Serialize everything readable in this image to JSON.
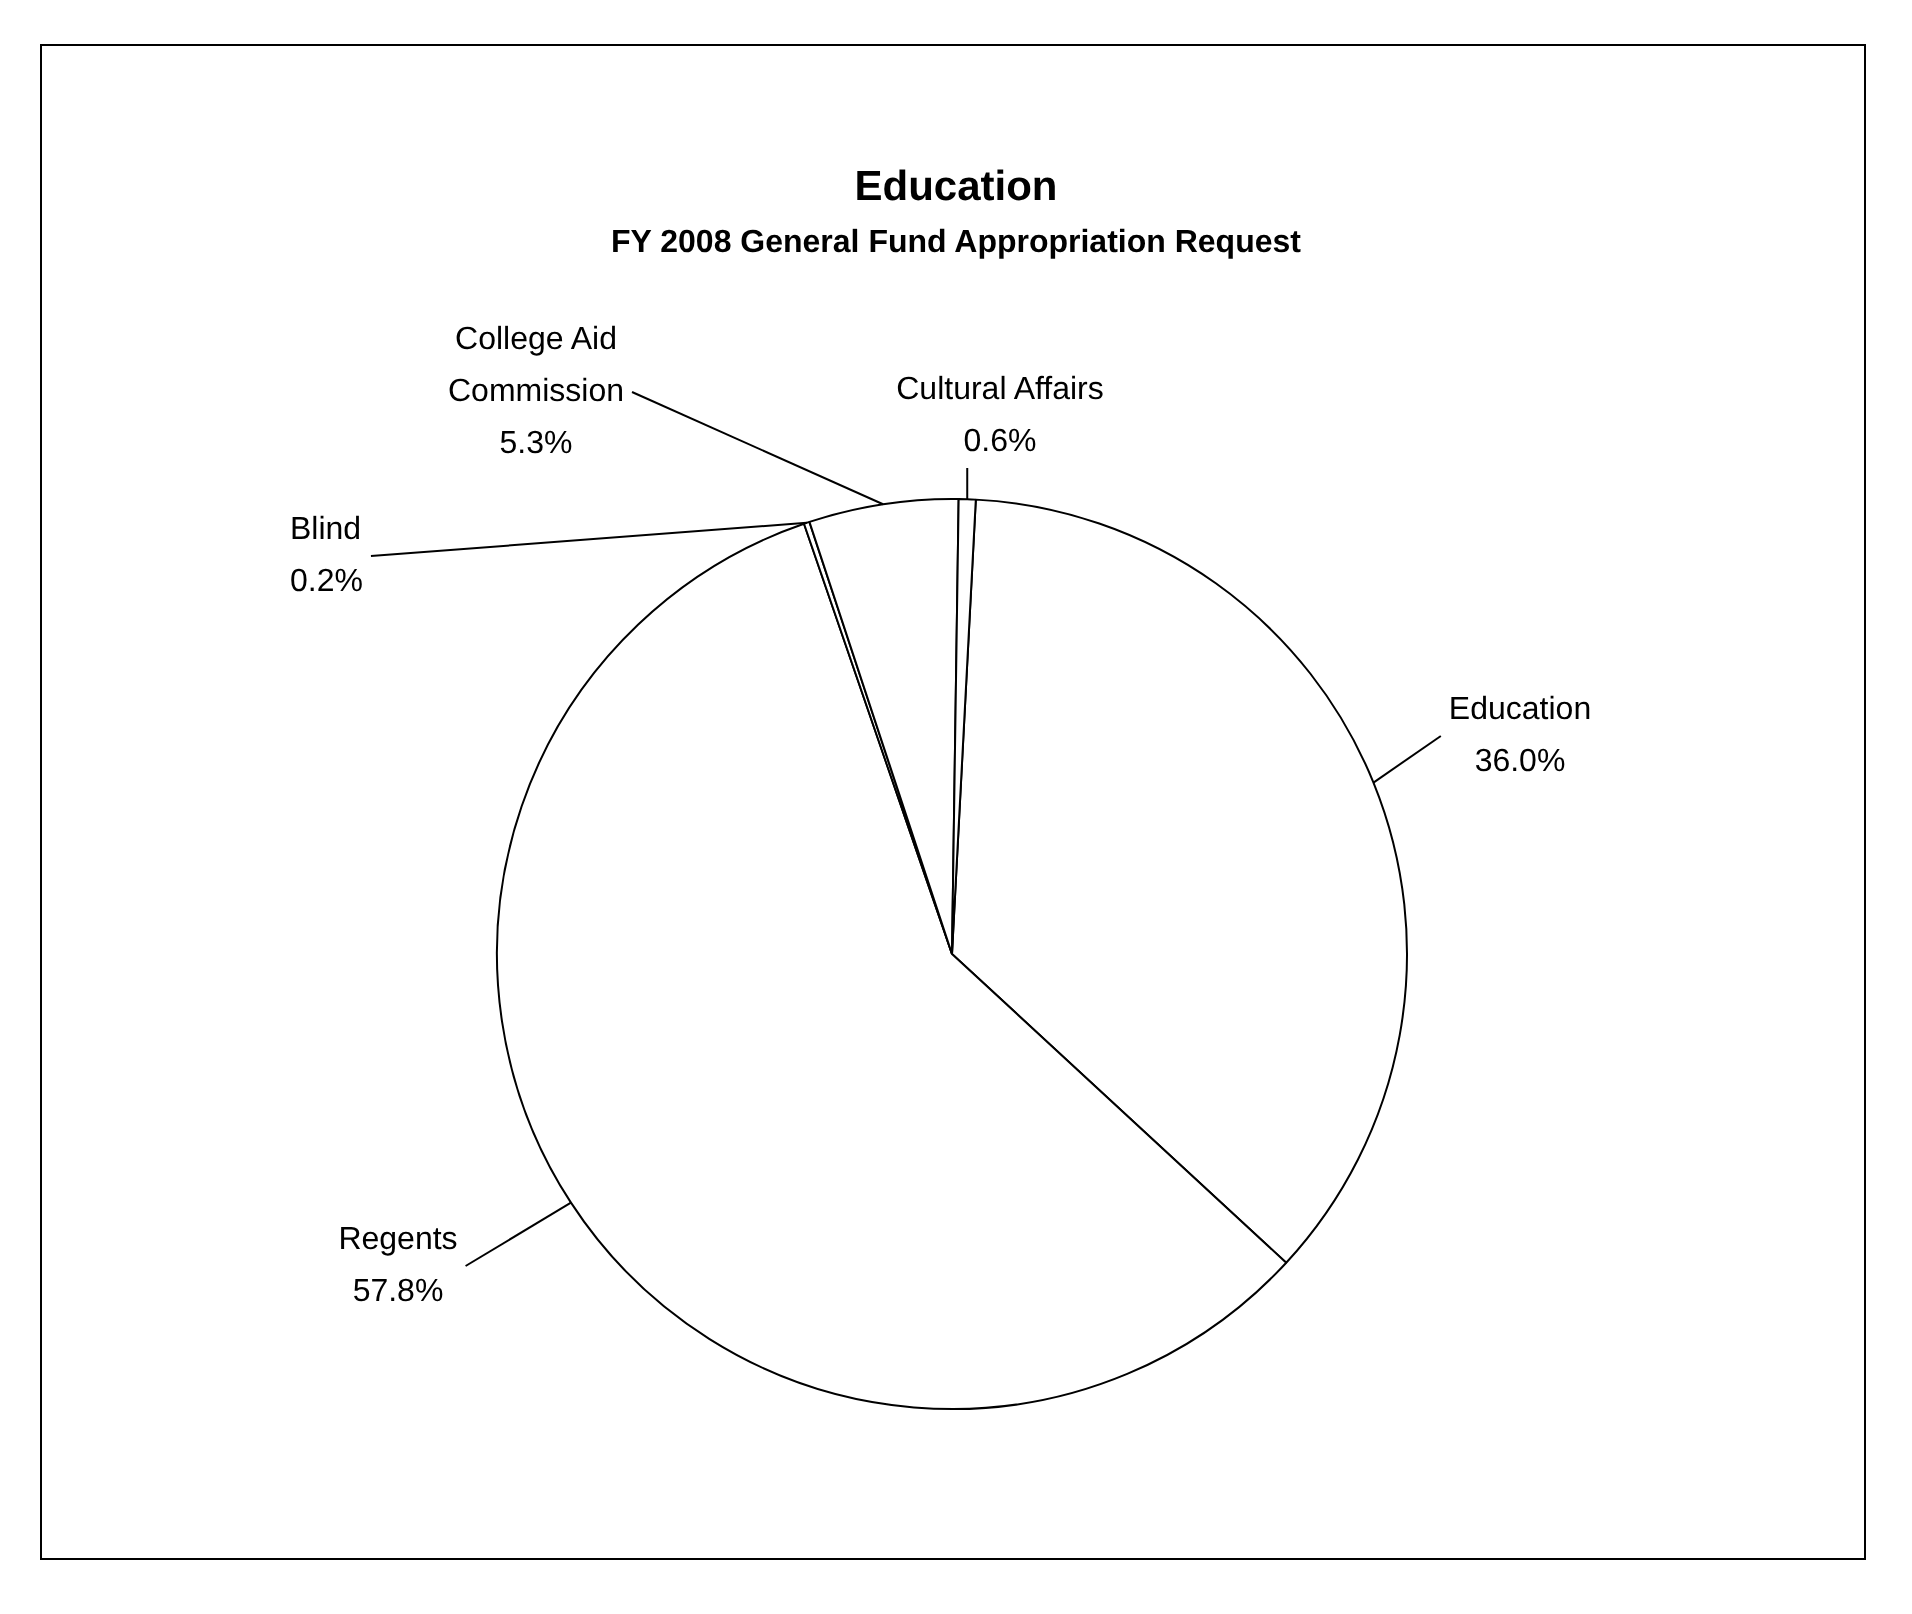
{
  "chart_data": {
    "type": "pie",
    "title": "Education",
    "subtitle": "FY 2008 General Fund Appropriation Request",
    "categories": [
      "Education",
      "Regents",
      "Blind",
      "College Aid Commission",
      "Cultural Affairs"
    ],
    "values": [
      36.0,
      57.8,
      0.2,
      5.3,
      0.6
    ],
    "colors": [
      "#ffffff",
      "#ffffff",
      "#ffffff",
      "#ffffff",
      "#ffffff"
    ],
    "value_labels": [
      "36.0%",
      "57.8%",
      "0.2%",
      "5.3%",
      "0.6%"
    ],
    "legend": false
  }
}
